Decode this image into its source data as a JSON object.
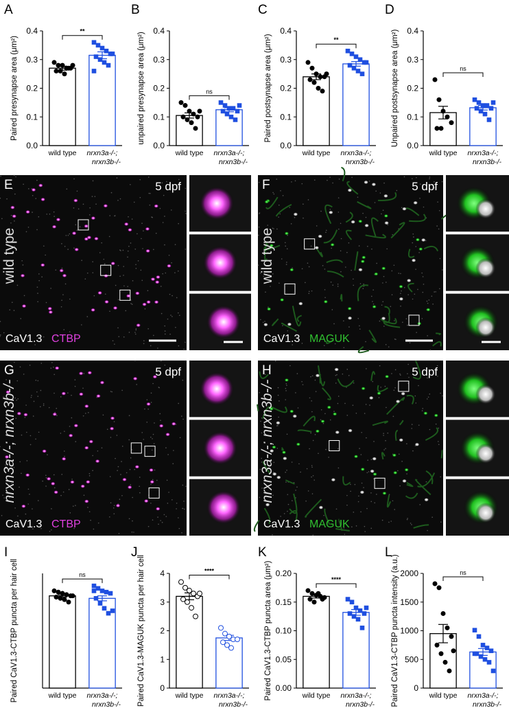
{
  "chart_data": [
    {
      "type": "bar",
      "panel": "A",
      "ylabel": "Paired presynapse area (μm²)",
      "categories": [
        "wild type",
        "nrxn3a-/-;\nnrxn3b-/-"
      ],
      "values": [
        0.27,
        0.315
      ],
      "errors": [
        0.007,
        0.012
      ],
      "points": [
        [
          0.29,
          0.28,
          0.28,
          0.27,
          0.27,
          0.26,
          0.26,
          0.25,
          0.27,
          0.28
        ],
        [
          0.36,
          0.35,
          0.34,
          0.33,
          0.32,
          0.31,
          0.3,
          0.29,
          0.28,
          0.32,
          0.26
        ]
      ],
      "colors": [
        "#000000",
        "#1f4fe0"
      ],
      "markers": [
        "circle",
        "square"
      ],
      "significance": "**",
      "ylim": [
        0,
        0.4
      ],
      "yticks": [
        {
          "value": 0,
          "label": "0.0"
        },
        0.1,
        0.2,
        0.3,
        0.4
      ]
    },
    {
      "type": "bar",
      "panel": "B",
      "ylabel": "unpaired presynapse area (μm²)",
      "categories": [
        "wild type",
        "nrxn3a-/-;\nnrxn3b-/-"
      ],
      "values": [
        0.105,
        0.125
      ],
      "errors": [
        0.009,
        0.007
      ],
      "points": [
        [
          0.15,
          0.14,
          0.12,
          0.11,
          0.1,
          0.1,
          0.09,
          0.08,
          0.06,
          0.12
        ],
        [
          0.15,
          0.14,
          0.13,
          0.13,
          0.12,
          0.12,
          0.11,
          0.1,
          0.09,
          0.14
        ]
      ],
      "colors": [
        "#000000",
        "#1f4fe0"
      ],
      "markers": [
        "circle",
        "square"
      ],
      "significance": "ns",
      "ylim": [
        0,
        0.4
      ],
      "yticks": [
        {
          "value": 0,
          "label": "0.0"
        },
        0.1,
        0.2,
        0.3,
        0.4
      ]
    },
    {
      "type": "bar",
      "panel": "C",
      "ylabel": "Paired postsynapse area (μm²)",
      "categories": [
        "wild type",
        "nrxn3a-/-;\nnrxn3b-/-"
      ],
      "values": [
        0.24,
        0.285
      ],
      "errors": [
        0.01,
        0.008
      ],
      "points": [
        [
          0.29,
          0.27,
          0.25,
          0.24,
          0.24,
          0.23,
          0.22,
          0.2,
          0.19,
          0.25
        ],
        [
          0.33,
          0.32,
          0.31,
          0.3,
          0.29,
          0.28,
          0.27,
          0.26,
          0.25,
          0.29
        ]
      ],
      "colors": [
        "#000000",
        "#1f4fe0"
      ],
      "markers": [
        "circle",
        "square"
      ],
      "significance": "**",
      "ylim": [
        0,
        0.4
      ],
      "yticks": [
        {
          "value": 0,
          "label": "0.0"
        },
        0.1,
        0.2,
        0.3,
        0.4
      ]
    },
    {
      "type": "bar",
      "panel": "D",
      "ylabel": "Unpaired postsynapse area (μm²)",
      "categories": [
        "wild type",
        "nrxn3a-/-;\nnrxn3b-/-"
      ],
      "values": [
        0.115,
        0.132
      ],
      "errors": [
        0.022,
        0.008
      ],
      "points": [
        [
          0.23,
          0.16,
          0.12,
          0.1,
          0.08,
          0.06,
          0.06
        ],
        [
          0.16,
          0.15,
          0.14,
          0.14,
          0.13,
          0.13,
          0.12,
          0.11,
          0.09,
          0.15
        ]
      ],
      "colors": [
        "#000000",
        "#1f4fe0"
      ],
      "markers": [
        "circle",
        "square"
      ],
      "significance": "ns",
      "ylim": [
        0,
        0.4
      ],
      "yticks": [
        {
          "value": 0,
          "label": "0.0"
        },
        0.1,
        0.2,
        0.3,
        0.4
      ]
    },
    {
      "type": "bar",
      "panel": "I",
      "ylabel": "Paired CaV1.3-CTBP puncta per hair cell",
      "categories": [
        "wild type",
        "nrxn3a-/-;\nnrxn3b-/-"
      ],
      "values": [
        3.7,
        3.6
      ],
      "errors": [
        0.05,
        0.1
      ],
      "points": [
        [
          3.9,
          3.85,
          3.8,
          3.75,
          3.7,
          3.65,
          3.6,
          3.55,
          3.45,
          3.7
        ],
        [
          4.1,
          4.0,
          3.9,
          3.85,
          3.8,
          3.6,
          3.4,
          3.2,
          3.0,
          3.1,
          3.9
        ]
      ],
      "colors": [
        "#000000",
        "#1f4fe0"
      ],
      "markers": [
        "circle",
        "square"
      ],
      "significance": "ns",
      "ylim": [
        0,
        4.6
      ]
    },
    {
      "type": "bar",
      "panel": "J",
      "ylabel": "Paired CaV1.3-MAGUK puncta per hair cell",
      "categories": [
        "wild type",
        "nrxn3a-/-;\nnrxn3b-/-"
      ],
      "values": [
        3.2,
        1.75
      ],
      "errors": [
        0.12,
        0.09
      ],
      "points": [
        [
          3.7,
          3.5,
          3.4,
          3.3,
          3.2,
          3.1,
          3.0,
          2.8,
          2.5,
          3.3
        ],
        [
          2.1,
          1.9,
          1.8,
          1.7,
          1.7,
          1.6,
          1.5,
          1.4
        ]
      ],
      "colors": [
        "#000000",
        "#1f4fe0"
      ],
      "markers": [
        "open-circle",
        "open-circle"
      ],
      "significance": "****",
      "ylim": [
        0,
        4
      ],
      "yticks": [
        0,
        1,
        2,
        3,
        4
      ]
    },
    {
      "type": "bar",
      "panel": "K",
      "ylabel": "Paired CaV1.3-CTBP puncta area (μm²)",
      "categories": [
        "wild type",
        "nrxn3a-/-;\nnrxn3b-/-"
      ],
      "values": [
        0.16,
        0.132
      ],
      "errors": [
        0.003,
        0.005
      ],
      "points": [
        [
          0.17,
          0.165,
          0.162,
          0.16,
          0.158,
          0.155,
          0.15,
          0.165,
          0.155
        ],
        [
          0.155,
          0.15,
          0.14,
          0.135,
          0.13,
          0.13,
          0.125,
          0.12,
          0.105,
          0.14
        ]
      ],
      "colors": [
        "#000000",
        "#1f4fe0"
      ],
      "markers": [
        "circle",
        "square"
      ],
      "significance": "****",
      "ylim": [
        0,
        0.2
      ],
      "yticks": [
        {
          "value": 0,
          "label": "0.00"
        },
        {
          "value": 0.05,
          "label": "0.05"
        },
        {
          "value": 0.1,
          "label": "0.10"
        },
        {
          "value": 0.15,
          "label": "0.15"
        },
        {
          "value": 0.2,
          "label": "0.20"
        }
      ]
    },
    {
      "type": "bar",
      "panel": "L",
      "ylabel": "Paired CaV1.3-CTBP puncta intensity (a.u.)",
      "categories": [
        "wild type",
        "nrxn3a-/-;\nnrxn3b-/-"
      ],
      "values": [
        950,
        630
      ],
      "errors": [
        160,
        60
      ],
      "points": [
        [
          1820,
          1750,
          1300,
          1050,
          900,
          750,
          600,
          450,
          300,
          650
        ],
        [
          1010,
          900,
          750,
          700,
          650,
          600,
          550,
          500,
          450,
          300,
          600
        ]
      ],
      "colors": [
        "#000000",
        "#1f4fe0"
      ],
      "markers": [
        "circle",
        "square"
      ],
      "significance": "ns",
      "ylim": [
        0,
        2000
      ],
      "yticks": [
        0,
        500,
        1000,
        1500,
        2000
      ]
    }
  ],
  "images": [
    {
      "panel": "E",
      "time": "5 dpf",
      "genotype": "wild type",
      "channel1": "CaV1.3",
      "channel2": "CTBP"
    },
    {
      "panel": "F",
      "time": "5 dpf",
      "genotype": "wild type",
      "channel1": "CaV1.3",
      "channel2": "MAGUK"
    },
    {
      "panel": "G",
      "time": "5 dpf",
      "genotype": "nrxn3a-/-; nrxn3b-/-",
      "channel1": "CaV1.3",
      "channel2": "CTBP"
    },
    {
      "panel": "H",
      "time": "5 dpf",
      "genotype": "nrxn3a-/-; nrxn3b-/-",
      "channel1": "CaV1.3",
      "channel2": "MAGUK"
    }
  ]
}
